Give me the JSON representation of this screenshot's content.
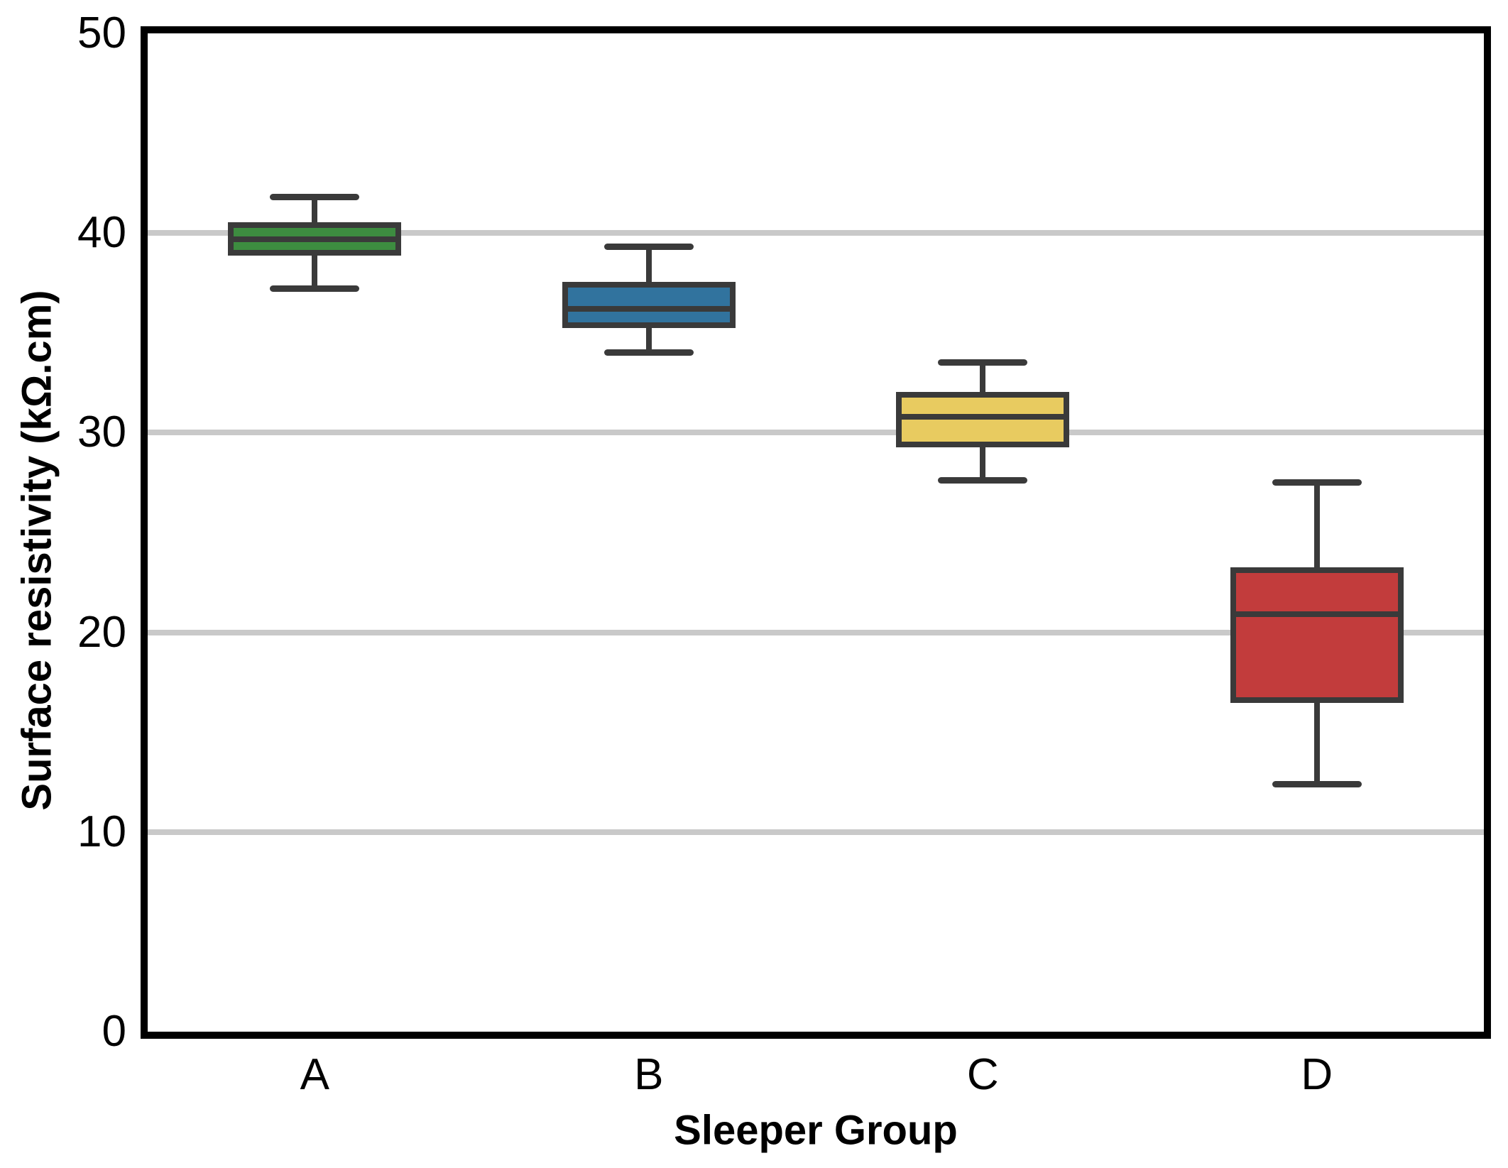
{
  "chart_data": {
    "type": "box",
    "title": "",
    "xlabel": "Sleeper Group",
    "ylabel": "Surface resistivity (kΩ.cm)",
    "categories": [
      "A",
      "B",
      "C",
      "D"
    ],
    "ylim": [
      0,
      50
    ],
    "yticks": [
      0,
      10,
      20,
      30,
      40,
      50
    ],
    "gridlines": [
      10,
      20,
      30,
      40
    ],
    "grid": "horizontal-light-gray",
    "legend": "none",
    "series": [
      {
        "name": "A",
        "whisker_low": 37.2,
        "q1": 39.0,
        "median": 39.7,
        "q3": 40.4,
        "whisker_high": 41.8,
        "color": "#3d8c40"
      },
      {
        "name": "B",
        "whisker_low": 34.0,
        "q1": 35.4,
        "median": 36.2,
        "q3": 37.4,
        "whisker_high": 39.3,
        "color": "#31739e"
      },
      {
        "name": "C",
        "whisker_low": 27.6,
        "q1": 29.4,
        "median": 30.8,
        "q3": 31.9,
        "whisker_high": 33.5,
        "color": "#e8cb60"
      },
      {
        "name": "D",
        "whisker_low": 12.4,
        "q1": 16.6,
        "median": 20.9,
        "q3": 23.1,
        "whisker_high": 27.5,
        "color": "#c23c3c"
      }
    ],
    "colors": {
      "box_edge": "#3a3a3a",
      "grid": "#c9c9c9",
      "frame": "#000000",
      "background": "#ffffff"
    }
  }
}
